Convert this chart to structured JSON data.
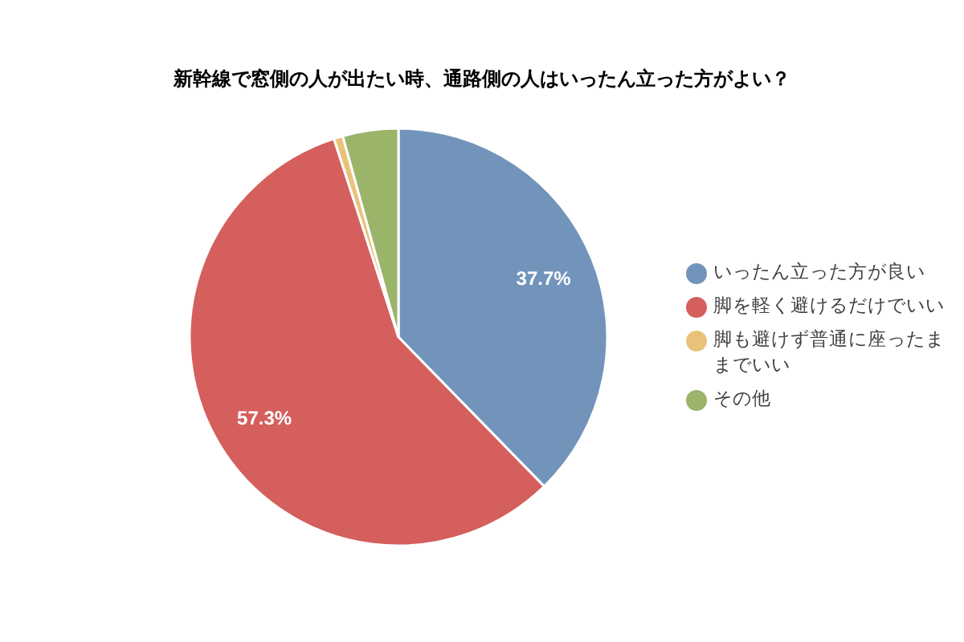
{
  "chart_data": {
    "type": "pie",
    "title": "新幹線で窓側の人が出たい時、通路側の人はいったん立った方がよい？",
    "categories": [
      "いったん立った方が良い",
      "脚を軽く避けるだけでいい",
      "脚も避けず普通に座ったままでいい",
      "その他"
    ],
    "values": [
      37.7,
      57.3,
      0.7,
      4.3
    ],
    "colors": [
      "#7294bb",
      "#d45f5d",
      "#e9c27a",
      "#9ab46a"
    ],
    "value_labels": [
      "37.7%",
      "57.3%",
      null,
      null
    ],
    "legend": "right"
  }
}
